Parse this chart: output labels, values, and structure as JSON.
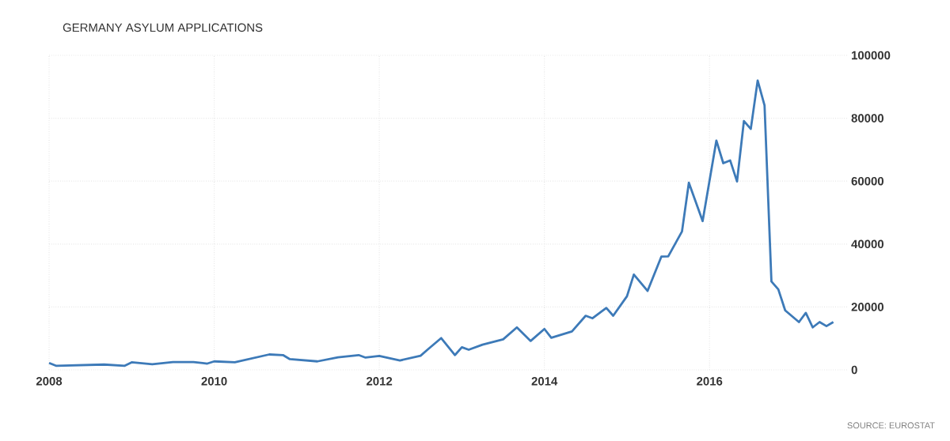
{
  "chart_data": {
    "type": "line",
    "title": "GERMANY ASYLUM APPLICATIONS",
    "annotations": [
      "SOURCE: EUROSTAT"
    ],
    "x": [
      "2008-01",
      "2008-02",
      "2008-09",
      "2008-12",
      "2009-01",
      "2009-04",
      "2009-07",
      "2009-10",
      "2009-12",
      "2010-01",
      "2010-04",
      "2010-09",
      "2010-11",
      "2010-12",
      "2011-04",
      "2011-07",
      "2011-10",
      "2011-11",
      "2012-01",
      "2012-04",
      "2012-07",
      "2012-08",
      "2012-10",
      "2012-12",
      "2013-01",
      "2013-02",
      "2013-04",
      "2013-07",
      "2013-09",
      "2013-11",
      "2014-01",
      "2014-02",
      "2014-05",
      "2014-07",
      "2014-08",
      "2014-10",
      "2014-11",
      "2015-01",
      "2015-02",
      "2015-04",
      "2015-06",
      "2015-07",
      "2015-09",
      "2015-10",
      "2015-12",
      "2016-02",
      "2016-03",
      "2016-04",
      "2016-05",
      "2016-06",
      "2016-07",
      "2016-08",
      "2016-09",
      "2016-10",
      "2016-11",
      "2016-12",
      "2017-02",
      "2017-03",
      "2017-04",
      "2017-05",
      "2017-06",
      "2017-07"
    ],
    "series": [
      {
        "color": "#3d7ab8",
        "values": [
          2200,
          1300,
          1700,
          1300,
          2400,
          1800,
          2500,
          2500,
          2000,
          2700,
          2400,
          4900,
          4700,
          3400,
          2700,
          4000,
          4700,
          3900,
          4400,
          3000,
          4500,
          6400,
          10100,
          4700,
          7200,
          6400,
          8000,
          9700,
          13500,
          9200,
          13000,
          10200,
          12200,
          17200,
          16400,
          19700,
          17200,
          23400,
          30300,
          25100,
          36000,
          36100,
          44000,
          59500,
          47300,
          72900,
          65700,
          66600,
          59900,
          79100,
          76600,
          92000,
          84100,
          28100,
          25600,
          18900,
          15200,
          18100,
          13500,
          15200,
          13900,
          15200
        ]
      }
    ],
    "xlim": [
      "2008-01",
      "2017-09"
    ],
    "xticks": [
      "2008",
      "2010",
      "2012",
      "2014",
      "2016"
    ],
    "ylim": [
      0,
      100000
    ],
    "yticks": [
      0,
      20000,
      40000,
      60000,
      80000,
      100000
    ],
    "grid": true,
    "line_style": "solid"
  }
}
